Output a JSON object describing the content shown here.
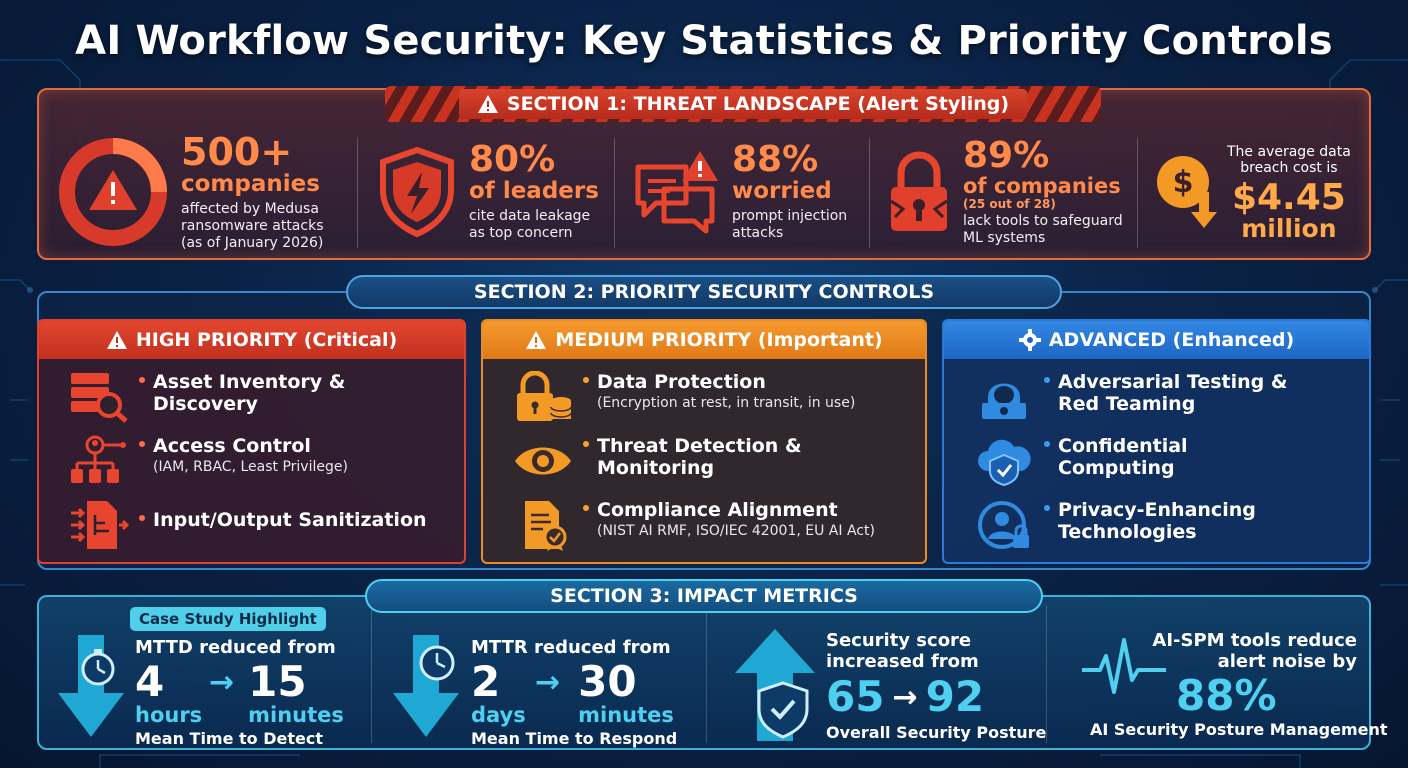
{
  "title": "AI Workflow Security: Key Statistics & Priority Controls",
  "section1": {
    "banner": "SECTION 1: THREAT LANDSCAPE (Alert Styling)",
    "stats": [
      {
        "big": "500+",
        "big2": "companies",
        "desc": [
          "affected by Medusa",
          "ransomware attacks",
          "(as of January 2026)"
        ],
        "icon": "warning-ring-icon"
      },
      {
        "big": "80%",
        "big2": "of leaders",
        "desc": [
          "cite data leakage",
          "as top concern"
        ],
        "icon": "shield-bolt-icon"
      },
      {
        "big": "88%",
        "big2": "worried",
        "desc": [
          "prompt injection",
          "attacks"
        ],
        "icon": "chat-alert-icon"
      },
      {
        "big": "89%",
        "big2": "of companies",
        "note": "(25 out of 28)",
        "desc": [
          "lack tools to safeguard",
          "ML systems"
        ],
        "icon": "broken-lock-icon"
      },
      {
        "pre": [
          "The average data",
          "breach cost is"
        ],
        "big": "$4.45",
        "big2": "million",
        "icon": "dollar-down-icon"
      }
    ]
  },
  "section2": {
    "banner": "SECTION 2: PRIORITY SECURITY CONTROLS",
    "cards": [
      {
        "title": "HIGH PRIORITY (Critical)",
        "color": "#e0402c",
        "items": [
          {
            "main": [
              "Asset Inventory &",
              "Discovery"
            ],
            "sub": "",
            "icon": "server-search-icon"
          },
          {
            "main": [
              "Access Control"
            ],
            "sub": "(IAM, RBAC, Least Privilege)",
            "icon": "user-hierarchy-icon"
          },
          {
            "main": [
              "Input/Output Sanitization"
            ],
            "sub": "",
            "icon": "file-filter-icon"
          }
        ]
      },
      {
        "title": "MEDIUM PRIORITY (Important)",
        "color": "#f08a24",
        "items": [
          {
            "main": [
              "Data Protection"
            ],
            "sub": "(Encryption at rest, in transit, in use)",
            "icon": "lock-database-icon"
          },
          {
            "main": [
              "Threat Detection &",
              "Monitoring"
            ],
            "sub": "",
            "icon": "eye-icon"
          },
          {
            "main": [
              "Compliance Alignment"
            ],
            "sub": "(NIST AI RMF, ISO/IEC 42001, EU AI Act)",
            "icon": "certificate-icon"
          }
        ]
      },
      {
        "title": "ADVANCED (Enhanced)",
        "color": "#2a7bd8",
        "items": [
          {
            "main": [
              "Adversarial Testing &",
              "Red Teaming"
            ],
            "sub": "",
            "icon": "hacker-icon"
          },
          {
            "main": [
              "Confidential",
              "Computing"
            ],
            "sub": "",
            "icon": "cloud-shield-icon"
          },
          {
            "main": [
              "Privacy-Enhancing",
              "Technologies"
            ],
            "sub": "",
            "icon": "user-lock-icon"
          }
        ]
      }
    ]
  },
  "section3": {
    "banner": "SECTION 3: IMPACT METRICS",
    "badge": "Case Study Highlight",
    "metrics": [
      {
        "label": "MTTD reduced from",
        "from": "4",
        "from_unit": "hours",
        "to": "15",
        "to_unit": "minutes",
        "caption": "Mean Time to Detect",
        "icon": "stopwatch-arrow-icon"
      },
      {
        "label": "MTTR reduced from",
        "from": "2",
        "from_unit": "days",
        "to": "30",
        "to_unit": "minutes",
        "caption": "Mean Time to Respond",
        "icon": "clock-arrow-icon"
      },
      {
        "label": [
          "Security score",
          "increased from"
        ],
        "from": "65",
        "to": "92",
        "caption": "Overall Security Posture",
        "icon": "shield-up-icon"
      },
      {
        "label": [
          "AI-SPM tools reduce",
          "alert noise by"
        ],
        "value": "88%",
        "caption": "AI Security Posture Management",
        "icon": "pulse-icon"
      }
    ]
  }
}
